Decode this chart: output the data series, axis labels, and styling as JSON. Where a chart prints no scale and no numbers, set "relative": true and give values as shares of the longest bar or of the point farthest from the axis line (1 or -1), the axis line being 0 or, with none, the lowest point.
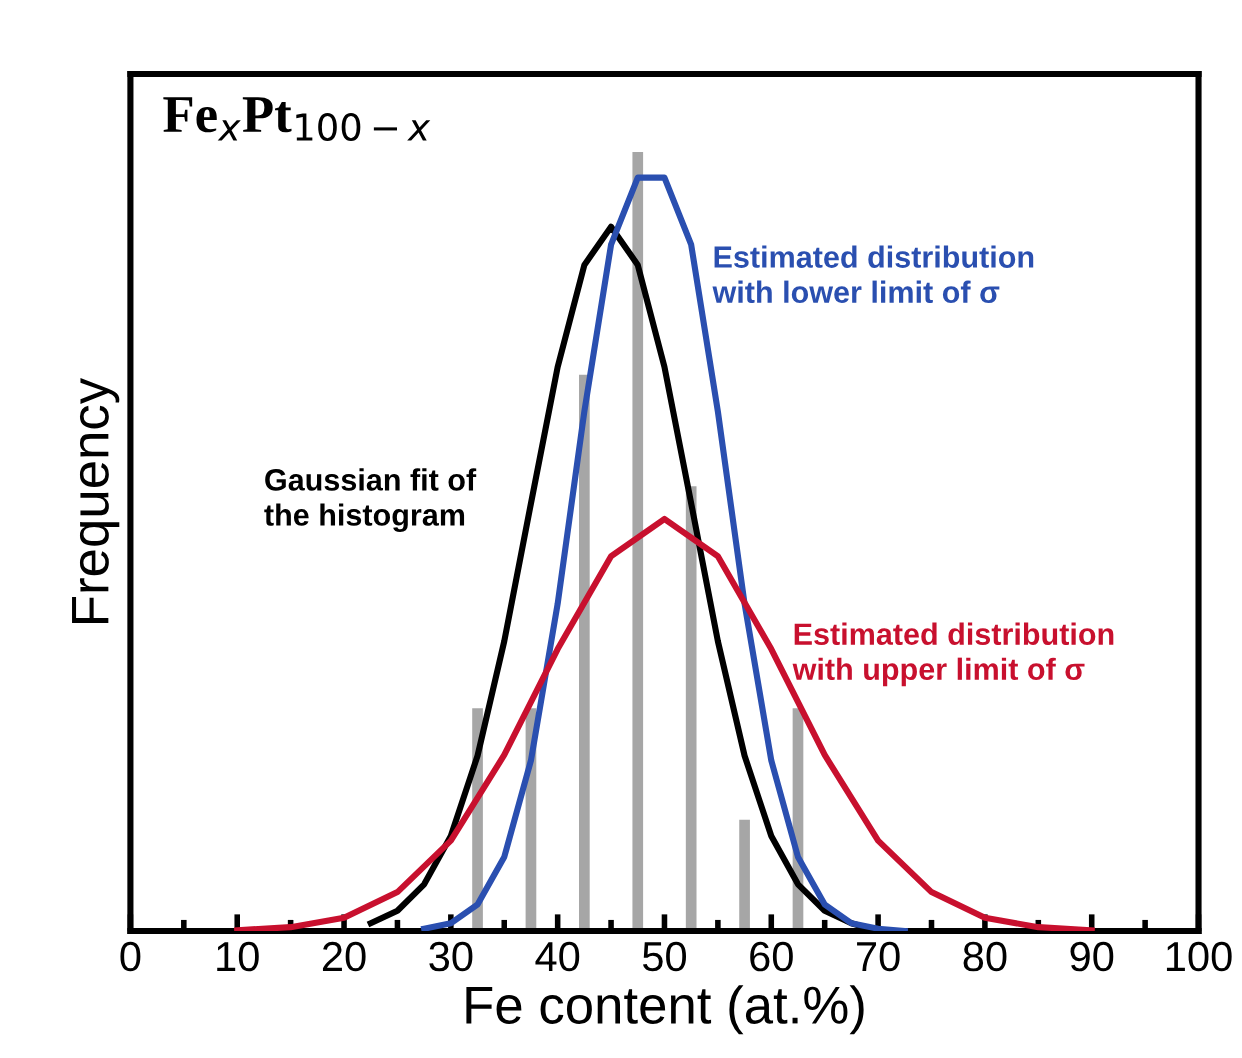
{
  "chart_data": {
    "type": "histogram",
    "title": "Fe$_{x}$Pt$_{100−x}$",
    "xlabel": "Fe content (at.%)",
    "ylabel": "Frequency",
    "relative": true,
    "bins": [
      30,
      35,
      40,
      45,
      50,
      55,
      60,
      65
    ],
    "values": [
      0.286,
      0.286,
      0.714,
      1,
      0.571,
      0.143,
      0.286
    ],
    "color": "#a6a6a6",
    "series": [
      {
        "type": "line",
        "name": "Gaussian fit of\nthe histogram",
        "color": "#000000",
        "x": [
          22.5,
          25,
          27.5,
          30,
          32.5,
          35,
          37.5,
          40,
          42.5,
          45,
          47.5,
          50,
          52.5,
          55,
          57.5,
          60,
          62.5,
          65,
          67.5,
          70
        ],
        "values": [
          0.01,
          0.026,
          0.06,
          0.122,
          0.225,
          0.372,
          0.549,
          0.724,
          0.855,
          0.904,
          0.855,
          0.724,
          0.549,
          0.372,
          0.225,
          0.122,
          0.06,
          0.026,
          0.01,
          0
        ]
      },
      {
        "type": "line",
        "name": "Estimated distribution\nwith lower limit of σ",
        "color": "#2a4fb0",
        "x": [
          27.5,
          30,
          32.5,
          35,
          37.5,
          40,
          42.5,
          45,
          47.5,
          50,
          52.5,
          55,
          57.5,
          60,
          62.5,
          65,
          67.5,
          70,
          72.5
        ],
        "values": [
          0.003,
          0.01,
          0.034,
          0.095,
          0.219,
          0.42,
          0.667,
          0.881,
          0.967,
          0.967,
          0.881,
          0.667,
          0.42,
          0.219,
          0.095,
          0.034,
          0.01,
          0.003,
          0
        ]
      },
      {
        "type": "line",
        "name": "Estimated distribution\nwith upper limit of σ",
        "color": "#c8102e",
        "x": [
          10,
          15,
          20,
          25,
          30,
          35,
          40,
          45,
          50,
          55,
          60,
          65,
          70,
          75,
          80,
          85,
          90
        ],
        "values": [
          0.001,
          0.005,
          0.017,
          0.05,
          0.116,
          0.226,
          0.362,
          0.481,
          0.529,
          0.481,
          0.362,
          0.226,
          0.116,
          0.05,
          0.017,
          0.005,
          0.001
        ]
      }
    ],
    "xlim": [
      0,
      100
    ],
    "xticks": [
      0,
      10,
      20,
      30,
      40,
      50,
      60,
      70,
      80,
      90,
      100
    ],
    "grid": false,
    "legend": false,
    "marker": "none",
    "line_style": "solid"
  }
}
